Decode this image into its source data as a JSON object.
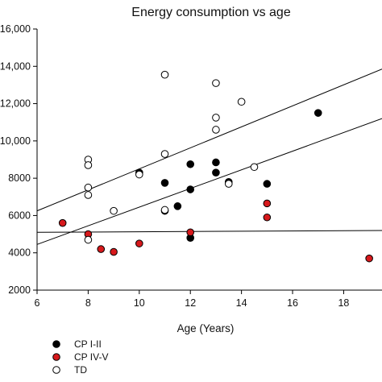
{
  "chart_data": {
    "type": "scatter",
    "title": "Energy consumption vs age",
    "xlabel": "Age (Years)",
    "ylabel": "",
    "xlim": [
      6,
      19.5
    ],
    "ylim": [
      2000,
      16000
    ],
    "x_ticks": [
      6,
      8,
      10,
      12,
      14,
      16,
      18
    ],
    "y_ticks": [
      {
        "value": 2000,
        "label": "2000"
      },
      {
        "value": 4000,
        "label": "4000"
      },
      {
        "value": 6000,
        "label": "6000"
      },
      {
        "value": 8000,
        "label": "8000"
      },
      {
        "value": 10000,
        "label": "10,000"
      },
      {
        "value": 12000,
        "label": "12,000"
      },
      {
        "value": 14000,
        "label": "14,000"
      },
      {
        "value": 16000,
        "label": "16,000"
      }
    ],
    "grid": false,
    "legend_position": "bottom-left",
    "series": [
      {
        "name": "CP I-II",
        "color": "#000000",
        "marker": "filled-circle",
        "points": [
          {
            "x": 10,
            "y": 8300
          },
          {
            "x": 11,
            "y": 7750
          },
          {
            "x": 11,
            "y": 6250
          },
          {
            "x": 11.5,
            "y": 6500
          },
          {
            "x": 12,
            "y": 8750
          },
          {
            "x": 12,
            "y": 7400
          },
          {
            "x": 12,
            "y": 4800
          },
          {
            "x": 13,
            "y": 8850
          },
          {
            "x": 13,
            "y": 8300
          },
          {
            "x": 13.5,
            "y": 7800
          },
          {
            "x": 15,
            "y": 7700
          },
          {
            "x": 17,
            "y": 11500
          }
        ]
      },
      {
        "name": "CP IV-V",
        "color": "#d7191c",
        "marker": "filled-circle",
        "points": [
          {
            "x": 7,
            "y": 5600
          },
          {
            "x": 8,
            "y": 5000
          },
          {
            "x": 8.5,
            "y": 4200
          },
          {
            "x": 9,
            "y": 4050
          },
          {
            "x": 10,
            "y": 4500
          },
          {
            "x": 12,
            "y": 5100
          },
          {
            "x": 15,
            "y": 6650
          },
          {
            "x": 15,
            "y": 5900
          },
          {
            "x": 19,
            "y": 3700
          }
        ]
      },
      {
        "name": "TD",
        "color": "#ffffff",
        "marker": "open-circle",
        "points": [
          {
            "x": 8,
            "y": 9000
          },
          {
            "x": 8,
            "y": 8700
          },
          {
            "x": 8,
            "y": 7500
          },
          {
            "x": 8,
            "y": 7100
          },
          {
            "x": 8,
            "y": 4700
          },
          {
            "x": 9,
            "y": 6250
          },
          {
            "x": 10,
            "y": 8200
          },
          {
            "x": 11,
            "y": 13550
          },
          {
            "x": 11,
            "y": 9300
          },
          {
            "x": 11,
            "y": 6300
          },
          {
            "x": 13,
            "y": 13100
          },
          {
            "x": 13,
            "y": 11250
          },
          {
            "x": 13,
            "y": 10600
          },
          {
            "x": 13.5,
            "y": 7700
          },
          {
            "x": 14,
            "y": 12100
          },
          {
            "x": 14.5,
            "y": 8600
          }
        ]
      }
    ],
    "trend_lines": [
      {
        "x": [
          6,
          19.5
        ],
        "y": [
          6250,
          13850
        ]
      },
      {
        "x": [
          6,
          19.5
        ],
        "y": [
          4450,
          11200
        ]
      },
      {
        "x": [
          6,
          19.5
        ],
        "y": [
          5100,
          5200
        ]
      }
    ]
  }
}
